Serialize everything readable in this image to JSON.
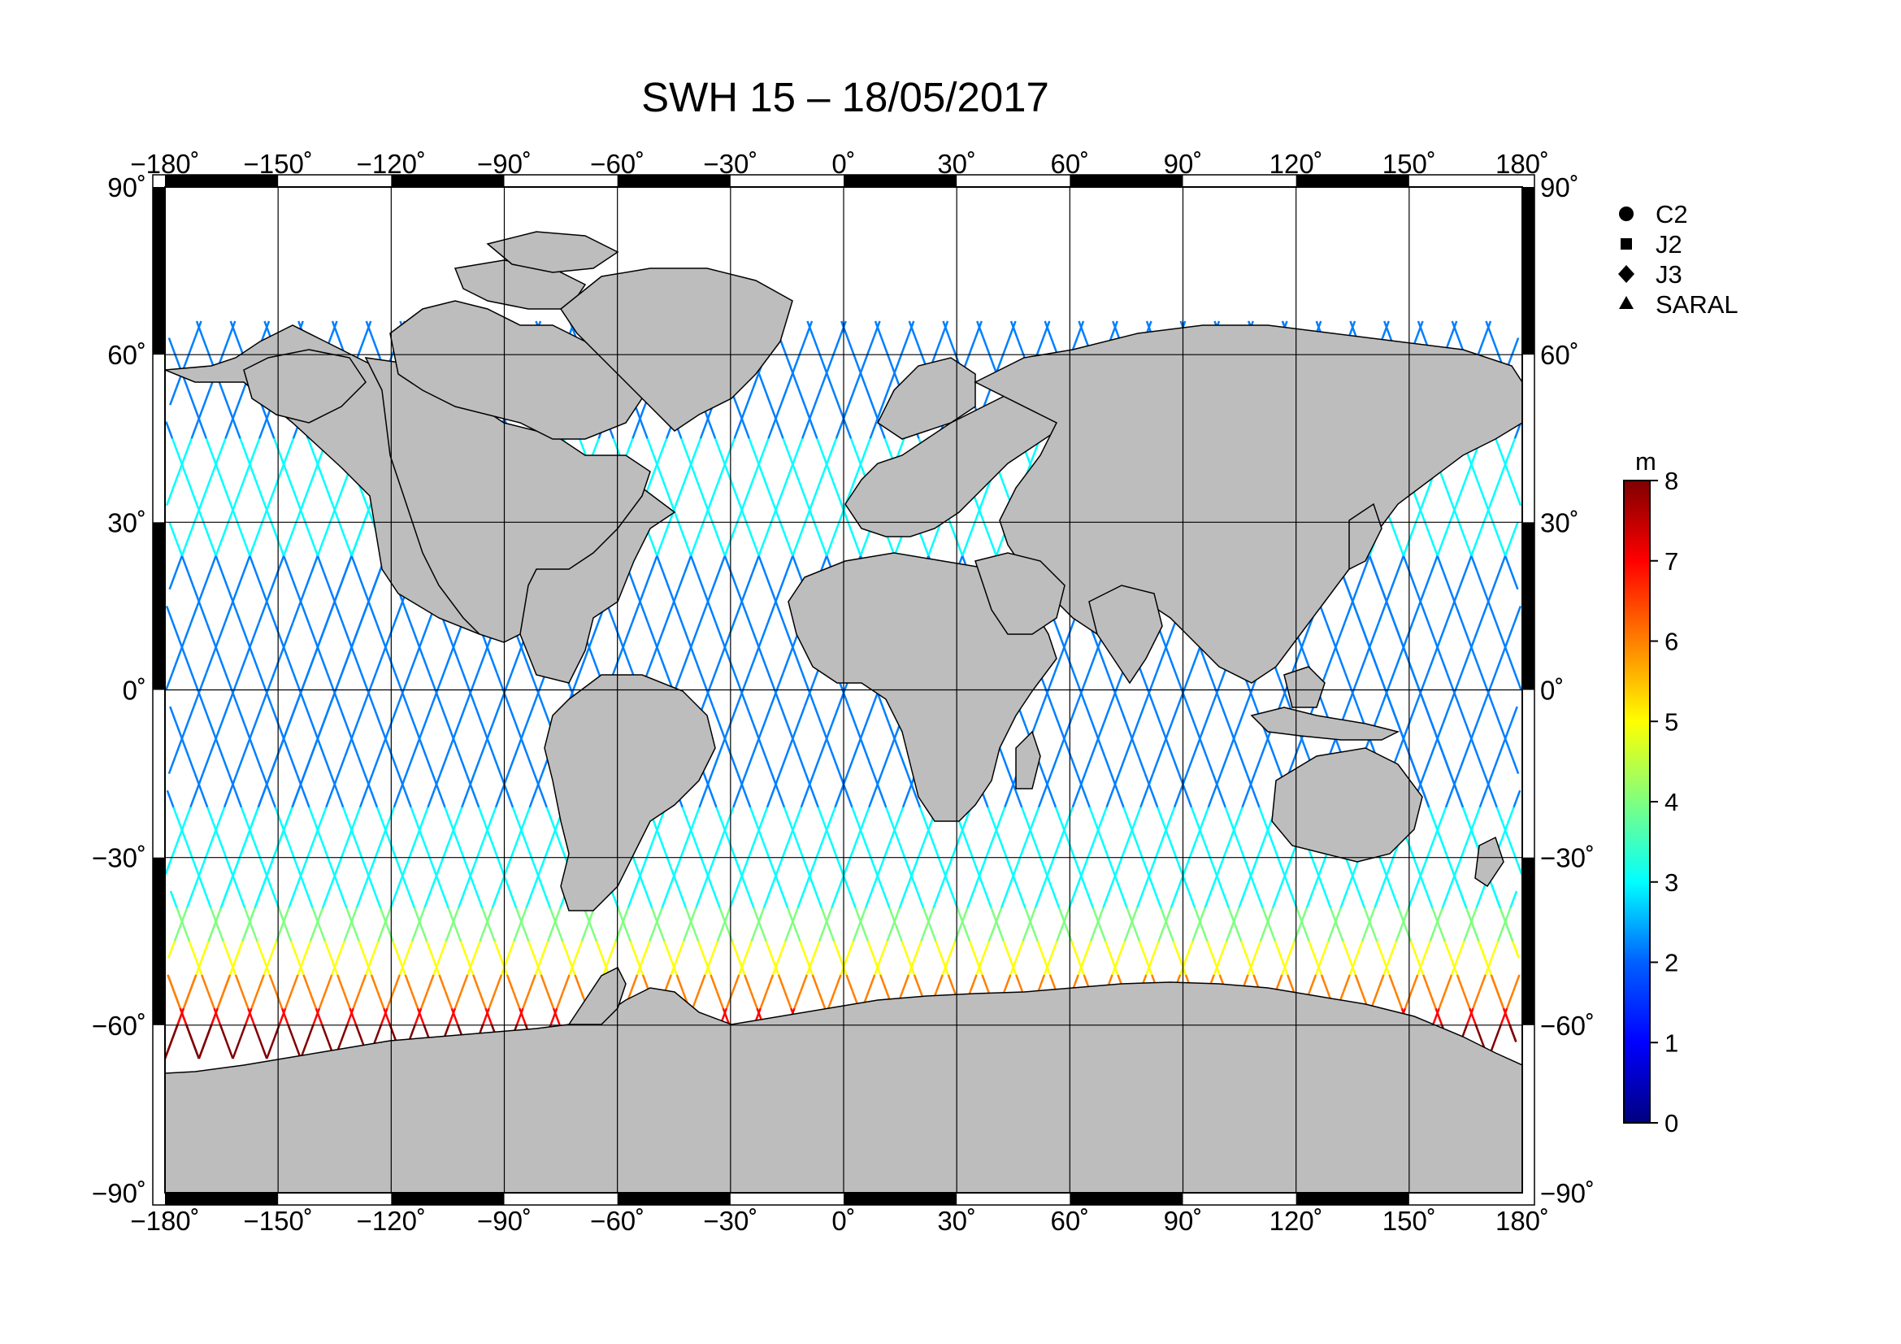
{
  "title": "SWH 15 – 18/05/2017",
  "axes": {
    "x_ticks": [
      "−180˚",
      "−150˚",
      "−120˚",
      "−90˚",
      "−60˚",
      "−30˚",
      "0˚",
      "30˚",
      "60˚",
      "90˚",
      "120˚",
      "150˚",
      "180˚"
    ],
    "y_ticks": [
      "90˚",
      "60˚",
      "30˚",
      "0˚",
      "−30˚",
      "−60˚",
      "−90˚"
    ],
    "lon_range": [
      -180,
      180
    ],
    "lat_range": [
      -90,
      90
    ],
    "grid": true
  },
  "legend": {
    "items": [
      {
        "label": "C2",
        "marker": "circle"
      },
      {
        "label": "J2",
        "marker": "square"
      },
      {
        "label": "J3",
        "marker": "diamond"
      },
      {
        "label": "SARAL",
        "marker": "triangle"
      }
    ]
  },
  "colorbar": {
    "unit": "m",
    "min": 0,
    "max": 8,
    "ticks": [
      "0",
      "1",
      "2",
      "3",
      "4",
      "5",
      "6",
      "7",
      "8"
    ],
    "colors": [
      "#00007f",
      "#0000ff",
      "#007fff",
      "#00ffff",
      "#7fff7f",
      "#ffff00",
      "#ff7f00",
      "#ff0000",
      "#7f0000"
    ]
  },
  "colors": {
    "land": "#bdbdbd",
    "coast": "#000000",
    "grid": "#000000"
  },
  "map": {
    "projection": "plate-carree",
    "variable": "significant wave height",
    "content": "satellite altimeter ground tracks colored by SWH",
    "high_swh_region": "southern ocean 40S-60S",
    "low_swh_region": "tropics and northern hemisphere"
  }
}
